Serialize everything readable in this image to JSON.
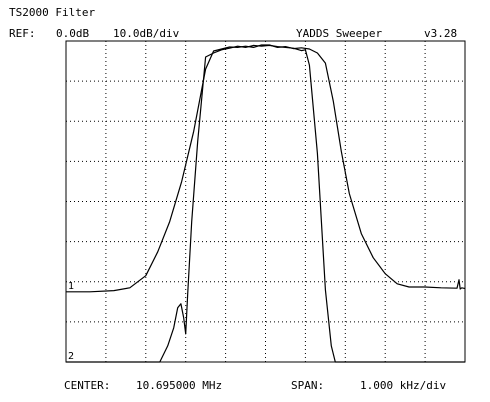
{
  "header": {
    "title": "TS2000 Filter",
    "ref_label": "REF:",
    "ref_value": "0.0dB",
    "scale": "10.0dB/div",
    "app_name": "YADDS Sweeper",
    "version": "v3.28"
  },
  "footer": {
    "center_label": "CENTER:",
    "center_value": "10.695000 MHz",
    "span_label": "SPAN:",
    "span_value": "1.000 kHz/div"
  },
  "chart_data": {
    "type": "line",
    "xlabel": "",
    "ylabel": "",
    "x_divisions": 10,
    "y_divisions": 8,
    "xlim": [
      -5,
      5
    ],
    "x_unit": "kHz from center",
    "ylim": [
      -80,
      0
    ],
    "y_unit": "dB",
    "grid": true,
    "series": [
      {
        "name": "1",
        "color": "#000000",
        "x": [
          -5.0,
          -4.4,
          -3.8,
          -3.4,
          -3.0,
          -2.7,
          -2.4,
          -2.1,
          -1.8,
          -1.5,
          -1.3,
          -1.1,
          -0.9,
          -0.7,
          -0.5,
          -0.3,
          -0.1,
          0.1,
          0.3,
          0.5,
          0.7,
          0.9,
          1.1,
          1.3,
          1.5,
          1.7,
          1.9,
          2.1,
          2.4,
          2.7,
          3.0,
          3.3,
          3.6,
          4.0,
          4.4,
          4.8,
          4.85,
          4.88,
          4.92,
          5.0
        ],
        "y": [
          -62.5,
          -62.5,
          -62.2,
          -61.5,
          -58.5,
          -52.5,
          -45,
          -35,
          -22.5,
          -7,
          -2.5,
          -2,
          -1.5,
          -1.6,
          -1.3,
          -1.6,
          -1.0,
          -1.0,
          -1.6,
          -1.4,
          -1.9,
          -1.7,
          -2.0,
          -3.0,
          -5.5,
          -15,
          -27.5,
          -38,
          -48,
          -54,
          -58,
          -60.5,
          -61.3,
          -61.3,
          -61.5,
          -61.6,
          -59.5,
          -61.8,
          -61.5,
          -61.7
        ]
      },
      {
        "name": "2",
        "color": "#000000",
        "x": [
          -5.0,
          -4.0,
          -3.0,
          -2.65,
          -2.45,
          -2.3,
          -2.2,
          -2.12,
          -2.05,
          -2.0,
          -1.95,
          -1.85,
          -1.7,
          -1.5,
          -1.3,
          -1.1,
          -0.9,
          -0.7,
          -0.5,
          -0.3,
          -0.1,
          0.1,
          0.3,
          0.5,
          0.7,
          0.9,
          1.0,
          1.1,
          1.3,
          1.5,
          1.65,
          1.75,
          2.0,
          5.0
        ],
        "y": [
          -80,
          -80,
          -80,
          -80,
          -76,
          -71.5,
          -66.5,
          -65.5,
          -69,
          -73,
          -63,
          -45,
          -25,
          -4,
          -3.0,
          -2.2,
          -1.8,
          -1.3,
          -1.6,
          -1.1,
          -1.3,
          -1.1,
          -1.4,
          -1.6,
          -1.8,
          -2.4,
          -2.2,
          -6,
          -28,
          -62,
          -76,
          -80,
          -80,
          -80
        ]
      }
    ]
  }
}
